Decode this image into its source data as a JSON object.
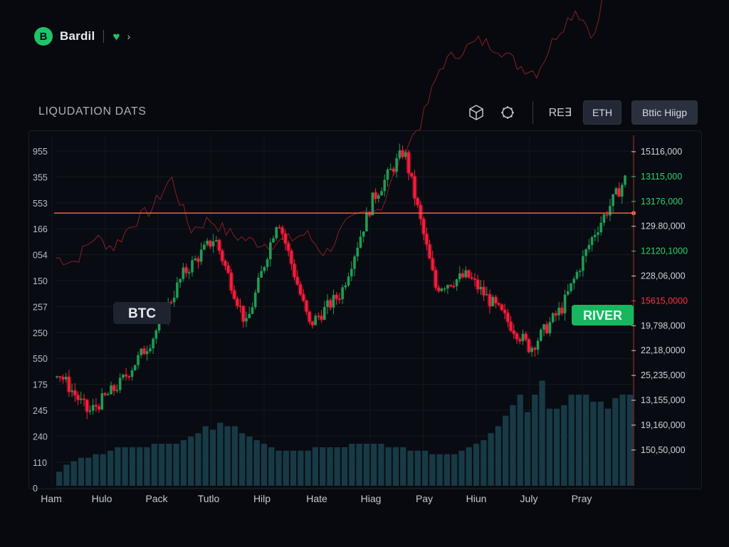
{
  "app": {
    "brand": "Bardil",
    "logo_glyph": "B",
    "chevron": "›"
  },
  "header": {
    "title": "LIQUDATION DATS",
    "toolbar": {
      "mode_label": "RE∃",
      "eth_label": "ETH",
      "map_label": "Bttic Hiigp"
    }
  },
  "colors": {
    "up": "#1f9d55",
    "down": "#ff1f3a",
    "accent": "#1fc46a",
    "liq_line": "#ff6a4d",
    "volume": "#173a46"
  },
  "chart_data": {
    "type": "candlestick",
    "title": "",
    "x_tick_labels": [
      "Ham",
      "Hulo",
      "Pack",
      "Tutlo",
      "Hilp",
      "Hate",
      "Hiag",
      "Pay",
      "Hiun",
      "July",
      "Pray"
    ],
    "left_axis_labels": [
      "955",
      "355",
      "553",
      "166",
      "054",
      "150",
      "257",
      "250",
      "550",
      "175",
      "245",
      "240",
      "110",
      "0"
    ],
    "right_axis_labels": [
      {
        "text": "15116,000",
        "color": "#cfd3da"
      },
      {
        "text": "13115,000",
        "color": "#2fd070"
      },
      {
        "text": "13176,000",
        "color": "#2fd070"
      },
      {
        "text": "129.80,000",
        "color": "#cfd3da"
      },
      {
        "text": "12120,1000",
        "color": "#2fd070"
      },
      {
        "text": "228,06,000",
        "color": "#cfd3da"
      },
      {
        "text": "15615,0000",
        "color": "#ff3040"
      },
      {
        "text": "19,798,000",
        "color": "#cfd3da"
      },
      {
        "text": "22,18,0000",
        "color": "#cfd3da"
      },
      {
        "text": "25,235,000",
        "color": "#cfd3da"
      },
      {
        "text": "13,155,000",
        "color": "#cfd3da"
      },
      {
        "text": "19,160,000",
        "color": "#cfd3da"
      },
      {
        "text": "150,50,000",
        "color": "#cfd3da"
      }
    ],
    "ylim": [
      0,
      100
    ],
    "liquidation_level": 77.8,
    "tags": {
      "btc": "BTC",
      "river": "RIVER"
    },
    "btc_path": [
      39.5,
      25,
      35,
      50,
      72.5,
      85,
      55,
      92,
      55,
      66,
      98,
      115,
      68,
      72,
      60,
      47,
      61,
      86,
      105
    ],
    "river_path": [
      65,
      64,
      71,
      68,
      75,
      79,
      88,
      73,
      76,
      72,
      70,
      69,
      70,
      72,
      66,
      74,
      78,
      80,
      95,
      104,
      120,
      124,
      127,
      125,
      120,
      118,
      129,
      136,
      128,
      156,
      175
    ],
    "volume": [
      4,
      6,
      7,
      8,
      8,
      9,
      9,
      10,
      11,
      11,
      11,
      11,
      11,
      12,
      12,
      12,
      12,
      13,
      14,
      15,
      17,
      16,
      18,
      17,
      17,
      15,
      14,
      13,
      12,
      11,
      10,
      10,
      10,
      10,
      10,
      11,
      11,
      11,
      11,
      11,
      12,
      12,
      12,
      12,
      12,
      11,
      11,
      11,
      10,
      10,
      10,
      9,
      9,
      9,
      9,
      10,
      11,
      12,
      13,
      15,
      17,
      20,
      23,
      26,
      21,
      26,
      30,
      22,
      22,
      23,
      26,
      26,
      26,
      24,
      24,
      22,
      25,
      26,
      26
    ]
  }
}
